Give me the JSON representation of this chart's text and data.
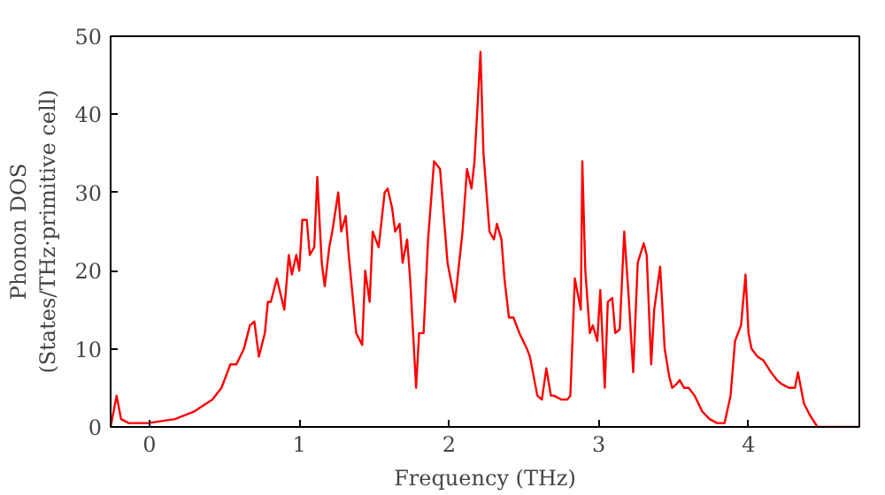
{
  "chart_data": {
    "type": "line",
    "xlabel": "Frequency (THz)",
    "ylabel": "Phonon DOS\n(States/THz·primitive cell)",
    "xlim": [
      -0.26,
      4.74
    ],
    "ylim": [
      0,
      50
    ],
    "xticks": [
      0,
      1,
      2,
      3,
      4
    ],
    "yticks": [
      0,
      10,
      20,
      30,
      40,
      50
    ],
    "grid": false,
    "series": [
      {
        "color": "#ff0000",
        "x": [
          -0.26,
          -0.22,
          -0.19,
          -0.14,
          -0.01,
          0.17,
          0.3,
          0.42,
          0.48,
          0.54,
          0.58,
          0.63,
          0.67,
          0.7,
          0.73,
          0.77,
          0.79,
          0.81,
          0.85,
          0.9,
          0.93,
          0.95,
          0.98,
          1.0,
          1.02,
          1.05,
          1.07,
          1.1,
          1.12,
          1.15,
          1.17,
          1.2,
          1.22,
          1.26,
          1.28,
          1.31,
          1.33,
          1.38,
          1.42,
          1.44,
          1.47,
          1.49,
          1.53,
          1.57,
          1.59,
          1.62,
          1.64,
          1.67,
          1.69,
          1.72,
          1.74,
          1.78,
          1.8,
          1.83,
          1.86,
          1.9,
          1.94,
          1.99,
          2.04,
          2.09,
          2.12,
          2.15,
          2.17,
          2.21,
          2.23,
          2.27,
          2.3,
          2.32,
          2.35,
          2.37,
          2.4,
          2.43,
          2.47,
          2.52,
          2.54,
          2.57,
          2.59,
          2.62,
          2.65,
          2.68,
          2.7,
          2.75,
          2.79,
          2.81,
          2.84,
          2.88,
          2.89,
          2.91,
          2.94,
          2.96,
          2.99,
          3.01,
          3.04,
          3.06,
          3.09,
          3.11,
          3.14,
          3.17,
          3.2,
          3.23,
          3.26,
          3.3,
          3.32,
          3.35,
          3.37,
          3.41,
          3.44,
          3.47,
          3.49,
          3.52,
          3.54,
          3.57,
          3.6,
          3.64,
          3.69,
          3.74,
          3.79,
          3.84,
          3.88,
          3.91,
          3.95,
          3.98,
          4.0,
          4.02,
          4.06,
          4.1,
          4.15,
          4.19,
          4.22,
          4.27,
          4.31,
          4.33,
          4.37,
          4.41,
          4.46,
          4.74
        ],
        "values": [
          0,
          4,
          1,
          0.5,
          0.5,
          1,
          2,
          3.5,
          5,
          8,
          8,
          10,
          13,
          13.5,
          9,
          12,
          16,
          16,
          19,
          15,
          22,
          19.5,
          22,
          20,
          26.5,
          26.5,
          22,
          23,
          32,
          21,
          18,
          23,
          25,
          30,
          25,
          27,
          22,
          12,
          10.5,
          20,
          16,
          25,
          23,
          30,
          30.5,
          28,
          25,
          26,
          21,
          24,
          19,
          5,
          12,
          12,
          24,
          34,
          33,
          21,
          16,
          25,
          33,
          30.5,
          34,
          48,
          35,
          25,
          24,
          26,
          24,
          19,
          14,
          14,
          12,
          10,
          9,
          6,
          4,
          3.5,
          7.5,
          4,
          4,
          3.5,
          3.5,
          4,
          19,
          15,
          34,
          20,
          12,
          13,
          11,
          17.5,
          5,
          16,
          16.5,
          12,
          12.5,
          25,
          16.5,
          7,
          21,
          23.5,
          22,
          8,
          15,
          20.5,
          10,
          6.5,
          5,
          5.5,
          6,
          5,
          5,
          4,
          2,
          1,
          0.5,
          0.5,
          4,
          11,
          13,
          19.5,
          12,
          10,
          9,
          8.5,
          7,
          6,
          5.5,
          5,
          5,
          7,
          3,
          1.5,
          0,
          0
        ]
      }
    ]
  }
}
